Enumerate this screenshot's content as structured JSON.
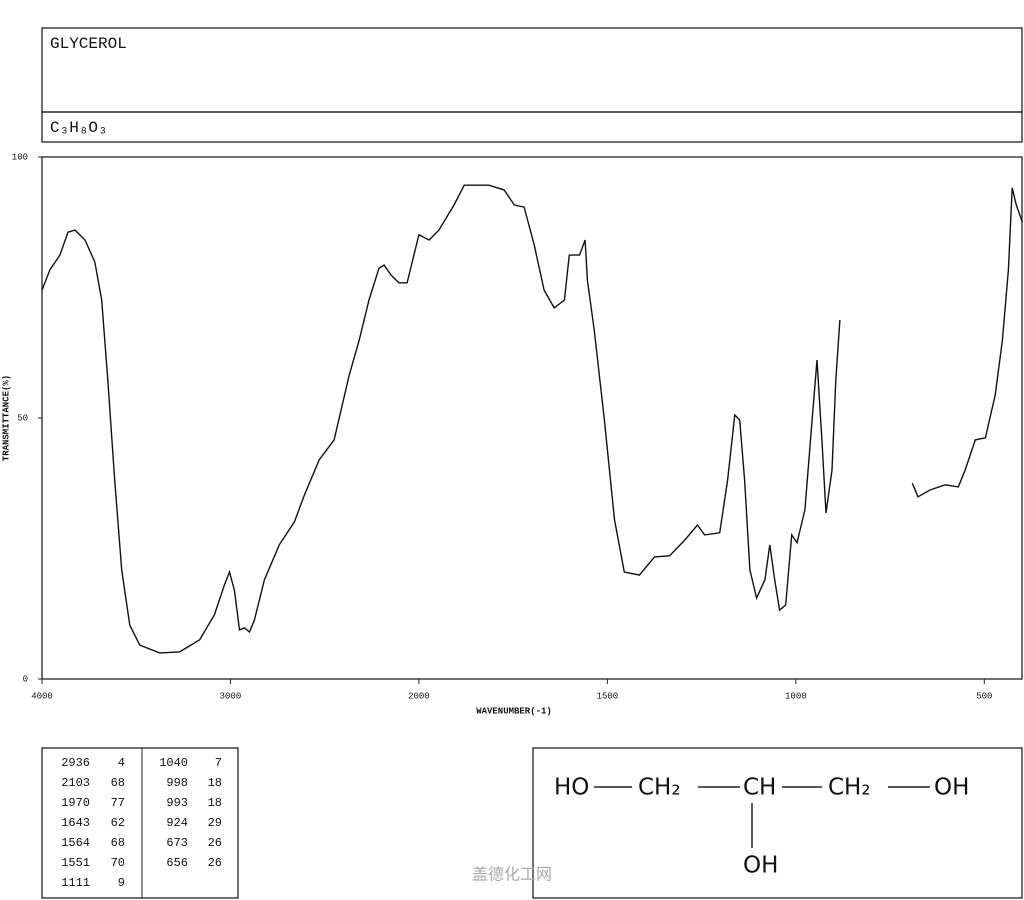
{
  "chart_data": {
    "type": "line",
    "title": "GLYCEROL",
    "subtitle": "C₃H₈O₃",
    "x_label": "WAVENUMBER(-1)",
    "y_label": "TRANSMITTANCE(%)",
    "xlim": [
      4000,
      400
    ],
    "x_scale": {
      "break": 2000,
      "ratio": 2
    },
    "xticks": [
      4000,
      3000,
      2000,
      1500,
      1000,
      500
    ],
    "ylim": [
      0,
      100
    ],
    "yticks": [
      0,
      50,
      100
    ],
    "color": "#111111",
    "x": [
      4000,
      3958,
      3905,
      3862,
      3825,
      3772,
      3720,
      3683,
      3651,
      3614,
      3577,
      3534,
      3481,
      3376,
      3270,
      3164,
      3085,
      3032,
      3005,
      2979,
      2952,
      2926,
      2899,
      2873,
      2820,
      2741,
      2661,
      2608,
      2529,
      2450,
      2370,
      2317,
      2265,
      2212,
      2185,
      2148,
      2106,
      2063,
      2000,
      1973,
      1947,
      1907,
      1880,
      1814,
      1774,
      1747,
      1721,
      1694,
      1668,
      1641,
      1614,
      1601,
      1574,
      1559,
      1553,
      1535,
      1508,
      1481,
      1455,
      1415,
      1375,
      1335,
      1295,
      1261,
      1242,
      1202,
      1181,
      1162,
      1149,
      1136,
      1122,
      1104,
      1082,
      1069,
      1056,
      1043,
      1027,
      1011,
      997,
      976,
      957,
      944,
      931,
      920,
      904,
      894,
      883,
      780,
      691,
      676,
      644,
      604,
      569,
      551,
      524,
      497,
      471,
      452,
      436,
      426,
      415,
      399
    ],
    "values": [
      74.5,
      78.4,
      81.2,
      85.6,
      86,
      84.1,
      79.9,
      72.6,
      57.3,
      38.1,
      20.9,
      10.3,
      6.5,
      5,
      5.2,
      7.5,
      12.3,
      18,
      20.5,
      17,
      9.4,
      9.8,
      9,
      11.3,
      19,
      25.7,
      30.1,
      35.2,
      42,
      45.8,
      58.2,
      64.9,
      72.6,
      78.7,
      79.3,
      77.4,
      75.9,
      75.9,
      85.1,
      84.1,
      86,
      90.8,
      94.6,
      94.6,
      93.7,
      90.8,
      90.4,
      83.1,
      74.5,
      71.1,
      72.6,
      81.2,
      81.2,
      84.1,
      76.4,
      66.9,
      49.6,
      30.5,
      20.5,
      19.9,
      23.4,
      23.6,
      26.6,
      29.5,
      27.6,
      28,
      38.1,
      50.6,
      49.6,
      38.1,
      20.9,
      15.5,
      19,
      25.7,
      19,
      13.2,
      14.2,
      27.6,
      26.1,
      32.4,
      49.6,
      61.1,
      45.8,
      31.8,
      40,
      57.3,
      68.8,
      null,
      37.5,
      34.9,
      36.2,
      37.2,
      36.8,
      40,
      45.8,
      46.2,
      54.4,
      64.9,
      78.4,
      94.1,
      90.8,
      87.5
    ]
  },
  "peak_table": {
    "columns": [
      [
        [
          "2936",
          "4"
        ],
        [
          "2103",
          "68"
        ],
        [
          "1970",
          "77"
        ],
        [
          "1643",
          "62"
        ],
        [
          "1564",
          "68"
        ],
        [
          "1551",
          "70"
        ],
        [
          "1111",
          "9"
        ]
      ],
      [
        [
          "1040",
          "7"
        ],
        [
          "998",
          "18"
        ],
        [
          "993",
          "18"
        ],
        [
          "924",
          "29"
        ],
        [
          "673",
          "26"
        ],
        [
          "656",
          "26"
        ]
      ]
    ]
  },
  "structure": {
    "labels": [
      "HO",
      "CH₂",
      "CH",
      "CH₂",
      "OH",
      "OH"
    ]
  },
  "watermark": "盖德化工网"
}
